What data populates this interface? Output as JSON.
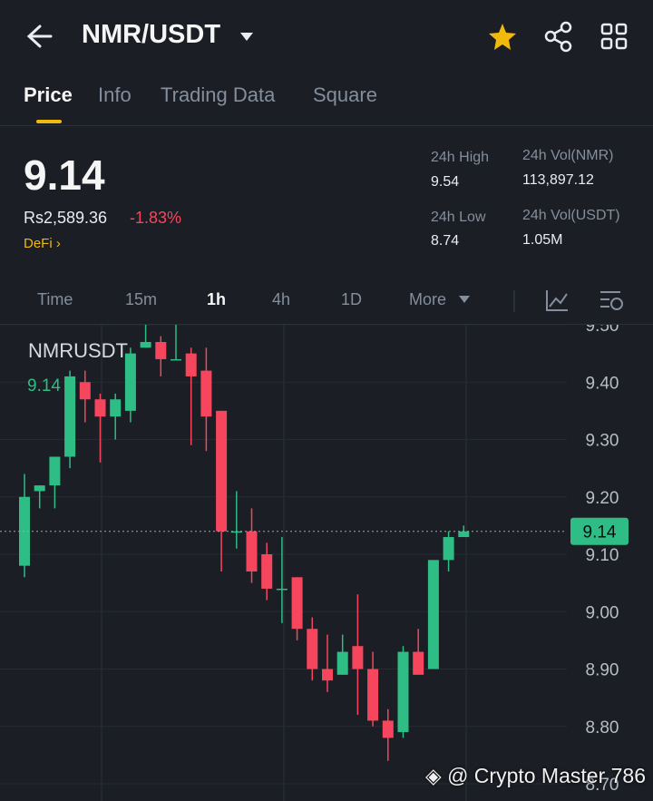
{
  "header": {
    "title": "NMR/USDT"
  },
  "tabs": [
    "Price",
    "Info",
    "Trading Data",
    "Square"
  ],
  "ticker": {
    "price": "9.14",
    "fiat": "Rs2,589.36",
    "change": "-1.83%",
    "tag": "DeFi"
  },
  "stats": [
    {
      "label": "24h High",
      "value": "9.54"
    },
    {
      "label": "24h Vol(NMR)",
      "value": "113,897.12"
    },
    {
      "label": "24h Low",
      "value": "8.74"
    },
    {
      "label": "24h Vol(USDT)",
      "value": "1.05M"
    }
  ],
  "intervals": [
    "Time",
    "15m",
    "1h",
    "4h",
    "1D",
    "More"
  ],
  "chart_data": {
    "type": "candlestick",
    "title": "NMRUSDT",
    "current_price": 9.14,
    "up_color": "#2ebd85",
    "down_color": "#f6465d",
    "grid": true,
    "ylim": [
      8.67,
      9.5
    ],
    "yticks": [
      {
        "value": 8.7,
        "label": "8.70"
      },
      {
        "value": 8.8,
        "label": "8.80"
      },
      {
        "value": 8.9,
        "label": "8.90"
      },
      {
        "value": 9.0,
        "label": "9.00"
      },
      {
        "value": 9.1,
        "label": "9.10"
      },
      {
        "value": 9.2,
        "label": "9.20"
      },
      {
        "value": 9.3,
        "label": "9.30"
      },
      {
        "value": 9.4,
        "label": "9.40"
      },
      {
        "value": 9.5,
        "label": "9.50"
      }
    ],
    "open": [
      9.08,
      9.21,
      9.22,
      9.27,
      9.4,
      9.37,
      9.34,
      9.35,
      9.46,
      9.47,
      9.44,
      9.45,
      9.42,
      9.35,
      9.14,
      9.14,
      9.1,
      9.04,
      9.06,
      8.97,
      8.9,
      8.89,
      8.94,
      8.9,
      8.81,
      8.79,
      8.93,
      8.9,
      9.09,
      9.13
    ],
    "high": [
      9.24,
      9.22,
      9.27,
      9.42,
      9.42,
      9.38,
      9.38,
      9.46,
      9.5,
      9.48,
      9.5,
      9.46,
      9.46,
      9.35,
      9.21,
      9.18,
      9.12,
      9.13,
      9.06,
      8.99,
      8.96,
      8.96,
      9.03,
      8.93,
      8.83,
      8.94,
      8.97,
      9.09,
      9.14,
      9.15
    ],
    "low": [
      9.06,
      9.18,
      9.18,
      9.25,
      9.33,
      9.26,
      9.3,
      9.33,
      9.46,
      9.41,
      9.44,
      9.29,
      9.28,
      9.07,
      9.11,
      9.05,
      9.02,
      8.98,
      8.95,
      8.88,
      8.86,
      8.89,
      8.82,
      8.8,
      8.74,
      8.78,
      8.89,
      8.9,
      9.07,
      9.13
    ],
    "close": [
      9.2,
      9.22,
      9.27,
      9.41,
      9.37,
      9.34,
      9.37,
      9.45,
      9.47,
      9.44,
      9.44,
      9.41,
      9.34,
      9.14,
      9.14,
      9.07,
      9.04,
      9.04,
      8.97,
      8.9,
      8.88,
      8.93,
      8.9,
      8.81,
      8.78,
      8.93,
      8.89,
      9.09,
      9.13,
      9.14
    ]
  },
  "watermark": "@ Crypto Master 786"
}
